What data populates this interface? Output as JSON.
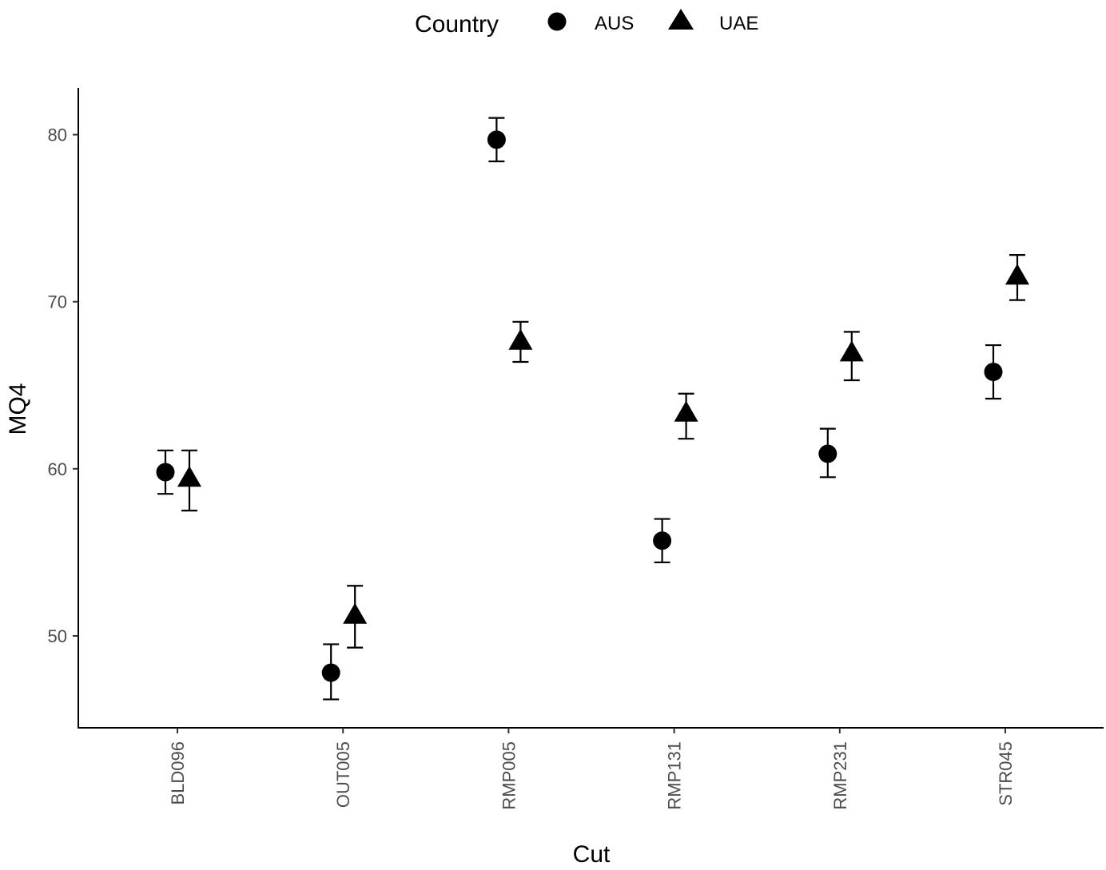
{
  "chart_data": {
    "type": "scatter",
    "title": "",
    "xlabel": "Cut",
    "ylabel": "MQ4",
    "categories": [
      "BLD096",
      "OUT005",
      "RMP005",
      "RMP131",
      "RMP231",
      "STR045"
    ],
    "yticks": [
      50,
      60,
      70,
      80
    ],
    "ylim": [
      44.5,
      82.8
    ],
    "grid": false,
    "legend": {
      "title": "Country",
      "placement": "top",
      "entries": [
        {
          "name": "AUS",
          "shape": "circle"
        },
        {
          "name": "UAE",
          "shape": "triangle"
        }
      ]
    },
    "series": [
      {
        "name": "AUS",
        "shape": "circle",
        "values": [
          59.8,
          47.8,
          79.7,
          55.7,
          60.9,
          65.8
        ],
        "lower": [
          58.5,
          46.2,
          78.4,
          54.4,
          59.5,
          64.2
        ],
        "upper": [
          61.1,
          49.5,
          81.0,
          57.0,
          62.4,
          67.4
        ]
      },
      {
        "name": "UAE",
        "shape": "triangle",
        "values": [
          59.4,
          51.2,
          67.6,
          63.3,
          66.9,
          71.5
        ],
        "lower": [
          57.5,
          49.3,
          66.4,
          61.8,
          65.3,
          70.1
        ],
        "upper": [
          61.1,
          53.0,
          68.8,
          64.5,
          68.2,
          72.8
        ]
      }
    ],
    "colors": {
      "marker": "#000000",
      "axis": "#000000",
      "tick_label": "#4d4d4d"
    }
  }
}
